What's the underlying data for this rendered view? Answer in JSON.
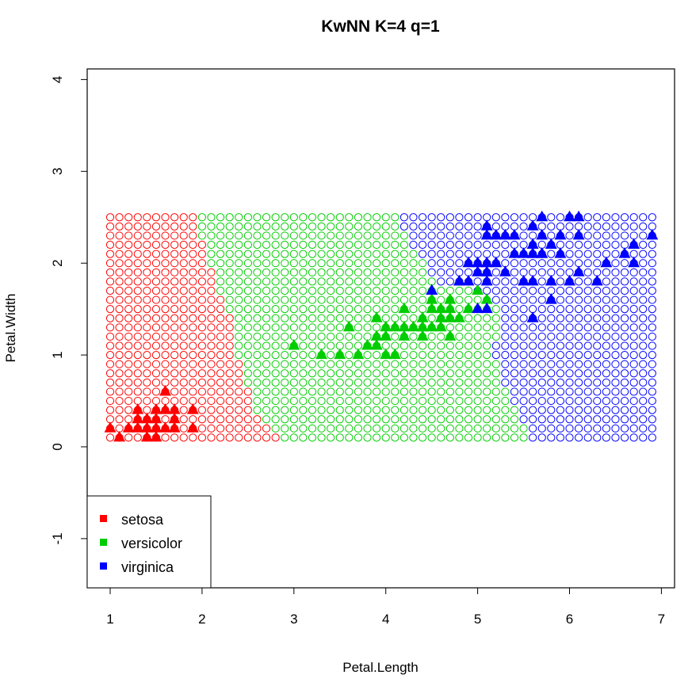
{
  "chart_data": {
    "type": "scatter",
    "title": "KwNN K=4 q=1",
    "xlabel": "Petal.Length",
    "ylabel": "Petal.Width",
    "xlim": [
      0.8,
      7.1
    ],
    "ylim": [
      -1.5,
      4.1
    ],
    "x_ticks": [
      1,
      2,
      3,
      4,
      5,
      6,
      7
    ],
    "y_ticks": [
      -1,
      0,
      1,
      2,
      3,
      4
    ],
    "grid": false,
    "legend_position": "bottom-left",
    "colors": {
      "setosa": "#ff0000",
      "versicolor": "#00cd00",
      "virginica": "#0000ff"
    },
    "legend": [
      "setosa",
      "versicolor",
      "virginica"
    ],
    "classification_grid": {
      "x_range": [
        1.0,
        6.9
      ],
      "y_range": [
        0.1,
        2.5
      ],
      "step": 0.1,
      "marker": "open-circle",
      "setosa_versicolor_boundary": [
        [
          0.1,
          2.9
        ],
        [
          0.2,
          2.8
        ],
        [
          0.3,
          2.7
        ],
        [
          0.4,
          2.6
        ],
        [
          0.5,
          2.6
        ],
        [
          0.6,
          2.6
        ],
        [
          0.7,
          2.5
        ],
        [
          0.8,
          2.5
        ],
        [
          0.9,
          2.5
        ],
        [
          1.0,
          2.4
        ],
        [
          1.1,
          2.4
        ],
        [
          1.2,
          2.4
        ],
        [
          1.3,
          2.4
        ],
        [
          1.4,
          2.4
        ],
        [
          1.5,
          2.3
        ],
        [
          1.6,
          2.3
        ],
        [
          1.7,
          2.2
        ],
        [
          1.8,
          2.2
        ],
        [
          1.9,
          2.2
        ],
        [
          2.0,
          2.1
        ],
        [
          2.1,
          2.1
        ],
        [
          2.2,
          2.1
        ],
        [
          2.3,
          2.0
        ],
        [
          2.4,
          2.0
        ],
        [
          2.5,
          2.0
        ]
      ],
      "versicolor_virginica_boundary": [
        [
          0.1,
          5.6
        ],
        [
          0.2,
          5.6
        ],
        [
          0.3,
          5.5
        ],
        [
          0.4,
          5.5
        ],
        [
          0.5,
          5.4
        ],
        [
          0.6,
          5.4
        ],
        [
          0.7,
          5.3
        ],
        [
          0.8,
          5.3
        ],
        [
          0.9,
          5.3
        ],
        [
          1.0,
          5.2
        ],
        [
          1.1,
          5.2
        ],
        [
          1.2,
          5.3
        ],
        [
          1.3,
          5.3
        ],
        [
          1.4,
          5.3
        ],
        [
          1.5,
          5.3
        ],
        [
          1.6,
          5.2
        ],
        [
          1.7,
          5.0
        ],
        [
          1.8,
          4.6
        ],
        [
          1.9,
          4.5
        ],
        [
          2.0,
          4.5
        ],
        [
          2.1,
          4.4
        ],
        [
          2.2,
          4.3
        ],
        [
          2.3,
          4.3
        ],
        [
          2.4,
          4.2
        ],
        [
          2.5,
          4.2
        ]
      ]
    },
    "series": [
      {
        "name": "setosa",
        "marker": "filled-triangle",
        "points": [
          [
            1.0,
            0.2
          ],
          [
            1.1,
            0.1
          ],
          [
            1.2,
            0.2
          ],
          [
            1.3,
            0.2
          ],
          [
            1.3,
            0.3
          ],
          [
            1.3,
            0.4
          ],
          [
            1.4,
            0.1
          ],
          [
            1.4,
            0.2
          ],
          [
            1.4,
            0.3
          ],
          [
            1.5,
            0.1
          ],
          [
            1.5,
            0.2
          ],
          [
            1.5,
            0.3
          ],
          [
            1.5,
            0.4
          ],
          [
            1.6,
            0.2
          ],
          [
            1.6,
            0.4
          ],
          [
            1.6,
            0.6
          ],
          [
            1.7,
            0.2
          ],
          [
            1.7,
            0.3
          ],
          [
            1.7,
            0.4
          ],
          [
            1.9,
            0.2
          ],
          [
            1.9,
            0.4
          ]
        ]
      },
      {
        "name": "versicolor",
        "marker": "filled-triangle",
        "points": [
          [
            3.0,
            1.1
          ],
          [
            3.3,
            1.0
          ],
          [
            3.5,
            1.0
          ],
          [
            3.6,
            1.3
          ],
          [
            3.7,
            1.0
          ],
          [
            3.8,
            1.1
          ],
          [
            3.9,
            1.1
          ],
          [
            3.9,
            1.2
          ],
          [
            3.9,
            1.4
          ],
          [
            4.0,
            1.0
          ],
          [
            4.0,
            1.2
          ],
          [
            4.0,
            1.3
          ],
          [
            4.1,
            1.0
          ],
          [
            4.1,
            1.3
          ],
          [
            4.2,
            1.2
          ],
          [
            4.2,
            1.3
          ],
          [
            4.2,
            1.5
          ],
          [
            4.3,
            1.3
          ],
          [
            4.4,
            1.2
          ],
          [
            4.4,
            1.3
          ],
          [
            4.4,
            1.4
          ],
          [
            4.5,
            1.3
          ],
          [
            4.5,
            1.5
          ],
          [
            4.5,
            1.7
          ],
          [
            4.6,
            1.3
          ],
          [
            4.6,
            1.4
          ],
          [
            4.6,
            1.5
          ],
          [
            4.7,
            1.2
          ],
          [
            4.7,
            1.4
          ],
          [
            4.7,
            1.5
          ],
          [
            4.7,
            1.6
          ],
          [
            4.8,
            1.4
          ],
          [
            4.8,
            1.8
          ],
          [
            4.9,
            1.5
          ],
          [
            5.0,
            1.7
          ],
          [
            5.1,
            1.6
          ],
          [
            4.5,
            1.6
          ],
          [
            4.4,
            1.3
          ],
          [
            3.9,
            1.1
          ]
        ]
      },
      {
        "name": "virginica",
        "marker": "filled-triangle",
        "points": [
          [
            4.5,
            1.7
          ],
          [
            4.8,
            1.8
          ],
          [
            4.9,
            1.8
          ],
          [
            4.9,
            2.0
          ],
          [
            5.0,
            1.5
          ],
          [
            5.0,
            1.9
          ],
          [
            5.0,
            2.0
          ],
          [
            5.1,
            1.5
          ],
          [
            5.1,
            1.8
          ],
          [
            5.1,
            1.9
          ],
          [
            5.1,
            2.0
          ],
          [
            5.1,
            2.3
          ],
          [
            5.1,
            2.4
          ],
          [
            5.2,
            2.0
          ],
          [
            5.2,
            2.3
          ],
          [
            5.3,
            1.9
          ],
          [
            5.3,
            2.3
          ],
          [
            5.4,
            2.1
          ],
          [
            5.4,
            2.3
          ],
          [
            5.5,
            1.8
          ],
          [
            5.5,
            2.1
          ],
          [
            5.6,
            1.4
          ],
          [
            5.6,
            1.8
          ],
          [
            5.6,
            2.1
          ],
          [
            5.6,
            2.2
          ],
          [
            5.6,
            2.4
          ],
          [
            5.7,
            2.1
          ],
          [
            5.7,
            2.3
          ],
          [
            5.7,
            2.5
          ],
          [
            5.8,
            1.8
          ],
          [
            5.8,
            2.2
          ],
          [
            5.9,
            2.1
          ],
          [
            5.9,
            2.3
          ],
          [
            6.0,
            1.8
          ],
          [
            6.0,
            2.5
          ],
          [
            6.1,
            1.9
          ],
          [
            6.1,
            2.3
          ],
          [
            6.1,
            2.5
          ],
          [
            6.3,
            1.8
          ],
          [
            6.4,
            2.0
          ],
          [
            6.6,
            2.1
          ],
          [
            6.7,
            2.0
          ],
          [
            6.7,
            2.2
          ],
          [
            6.9,
            2.3
          ],
          [
            5.8,
            1.6
          ],
          [
            5.7,
            2.1
          ],
          [
            5.6,
            2.1
          ],
          [
            5.1,
            1.9
          ]
        ]
      }
    ]
  }
}
